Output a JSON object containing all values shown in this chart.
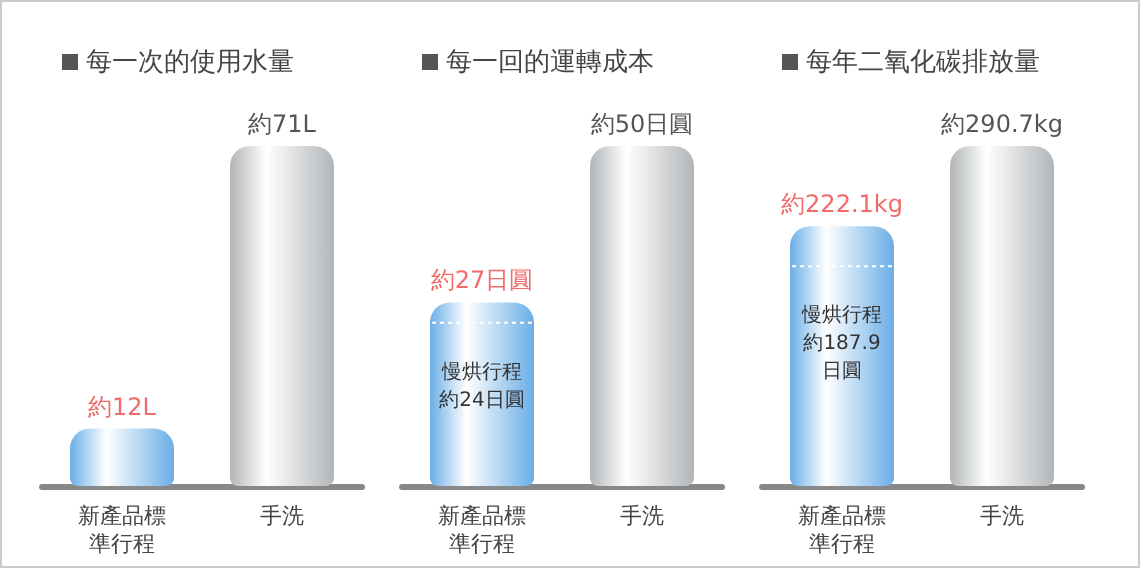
{
  "chart_data": [
    {
      "type": "bar",
      "title": "每一次的使用水量",
      "categories": [
        "新產品標準行程",
        "手洗"
      ],
      "values": [
        12,
        71
      ],
      "colors": [
        "#6aaee6",
        "#b2b6b9"
      ],
      "value_labels": [
        "約12L",
        "約71L"
      ]
    },
    {
      "type": "bar",
      "title": "每一回的運轉成本",
      "categories": [
        "新產品標準行程",
        "手洗"
      ],
      "values": [
        27,
        50
      ],
      "colors": [
        "#6aaee6",
        "#b2b6b9"
      ],
      "value_labels": [
        "約27日圓",
        "約50日圓"
      ],
      "ref_lines": [
        {
          "axis": "y",
          "value": 24,
          "label": "慢烘行程約24日圓",
          "color": "#ffffff",
          "line_style": "dotted"
        }
      ]
    },
    {
      "type": "bar",
      "title": "每年二氧化碳排放量",
      "categories": [
        "新產品標準行程",
        "手洗"
      ],
      "values": [
        222.1,
        290.7
      ],
      "colors": [
        "#6aaee6",
        "#b2b6b9"
      ],
      "value_labels": [
        "約222.1kg",
        "約290.7kg"
      ],
      "ref_lines": [
        {
          "axis": "y",
          "value": 187.9,
          "label": "慢烘行程約187.9日圓",
          "color": "#ffffff",
          "line_style": "dotted"
        }
      ]
    }
  ]
}
